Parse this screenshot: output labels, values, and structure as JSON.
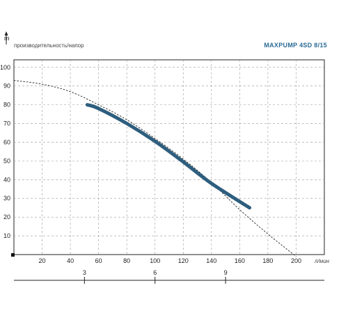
{
  "header": {
    "y_unit": "m",
    "subtitle": "производительность/напор",
    "model": "MAXPUMP 4SD 8/15"
  },
  "chart_data": {
    "type": "line",
    "title": "MAXPUMP 4SD 8/15",
    "ylabel": "m",
    "xlabel": "л/мин",
    "xlim": [
      0,
      220
    ],
    "ylim": [
      0,
      104
    ],
    "x_ticks": [
      20,
      40,
      60,
      80,
      100,
      120,
      140,
      160,
      180,
      200
    ],
    "y_ticks": [
      10,
      20,
      30,
      40,
      50,
      60,
      70,
      80,
      90,
      100
    ],
    "secondary_axis": {
      "ticks": [
        {
          "label": "3",
          "x": 50
        },
        {
          "label": "6",
          "x": 100
        },
        {
          "label": "9",
          "x": 150
        }
      ]
    },
    "grid": true,
    "series": [
      {
        "role": "full-curve",
        "style": "dashed",
        "color": "#222222",
        "x": [
          0,
          20,
          40,
          60,
          80,
          100,
          120,
          140,
          160,
          180,
          200
        ],
        "y": [
          93,
          91,
          87,
          80,
          72,
          62,
          51,
          38.5,
          24,
          11,
          -1
        ]
      },
      {
        "role": "operating-range",
        "style": "solid",
        "color": "#2e5e7e",
        "x": [
          52,
          60,
          80,
          100,
          120,
          140,
          167
        ],
        "y": [
          80,
          78,
          70,
          60.5,
          49.5,
          38,
          25
        ]
      }
    ]
  }
}
